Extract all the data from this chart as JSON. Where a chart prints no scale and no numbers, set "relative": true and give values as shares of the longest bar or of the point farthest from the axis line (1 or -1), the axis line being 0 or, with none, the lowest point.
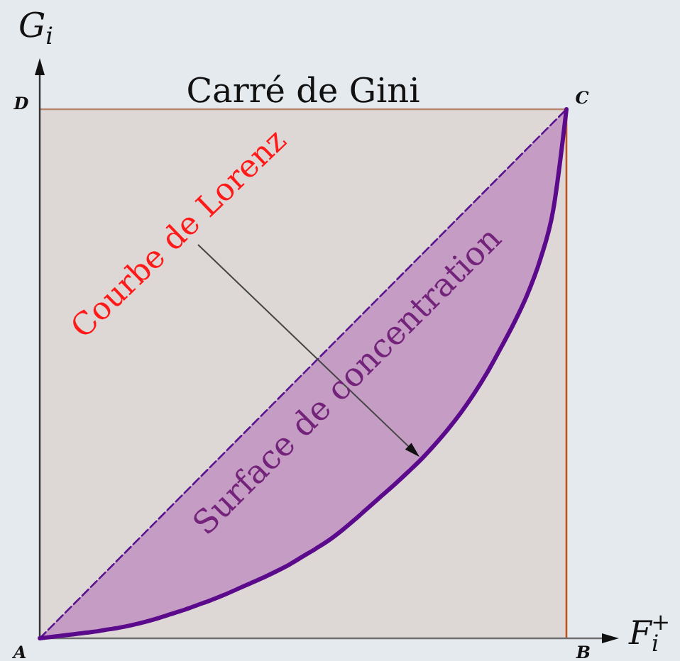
{
  "chart_data": {
    "type": "line",
    "title": "Carré de Gini",
    "xlabel": "F$_{i}$$^{+}$",
    "ylabel": "G$_{i}$",
    "relative": true,
    "categories": [
      null,
      null,
      null,
      null,
      null,
      null,
      null,
      null,
      null,
      null,
      null,
      null,
      null,
      null,
      null,
      null,
      null,
      null,
      null,
      null,
      null,
      null,
      null,
      null,
      null,
      null,
      null,
      null,
      null,
      null,
      null,
      null,
      null,
      null,
      null,
      null,
      null,
      null,
      null,
      null,
      null
    ],
    "series": [
      {
        "type": "line",
        "color": "#5a1490",
        "line_style": "dashed",
        "values": [
          0,
          0.025,
          0.05,
          0.075,
          0.1,
          0.125,
          0.15,
          0.175,
          0.2,
          0.225,
          0.25,
          0.275,
          0.3,
          0.325,
          0.35,
          0.375,
          0.4,
          0.425,
          0.45,
          0.475,
          0.5,
          0.525,
          0.55,
          0.575,
          0.6,
          0.625,
          0.65,
          0.675,
          0.7,
          0.725,
          0.75,
          0.775,
          0.8,
          0.825,
          0.85,
          0.875,
          0.9,
          0.925,
          0.95,
          0.975,
          1
        ]
      },
      {
        "type": "line",
        "color": "#5b0a8c",
        "line_style": "solid",
        "values": [
          0,
          0.003,
          0.006,
          0.009,
          0.012,
          0.016,
          0.02,
          0.025,
          0.031,
          0.038,
          0.046,
          0.054,
          0.063,
          0.072,
          0.082,
          0.093,
          0.104,
          0.115,
          0.127,
          0.14,
          0.155,
          0.17,
          0.186,
          0.205,
          0.226,
          0.248,
          0.27,
          0.292,
          0.315,
          0.339,
          0.366,
          0.395,
          0.427,
          0.463,
          0.503,
          0.548,
          0.595,
          0.648,
          0.715,
          0.81,
          1
        ],
        "lower": [
          0,
          0.003,
          0.006,
          0.009,
          0.012,
          0.016,
          0.02,
          0.025,
          0.031,
          0.038,
          0.046,
          0.054,
          0.063,
          0.072,
          0.082,
          0.093,
          0.104,
          0.115,
          0.127,
          0.14,
          0.155,
          0.17,
          0.186,
          0.205,
          0.226,
          0.248,
          0.27,
          0.292,
          0.315,
          0.339,
          0.366,
          0.395,
          0.427,
          0.463,
          0.503,
          0.548,
          0.595,
          0.648,
          0.715,
          0.81,
          1
        ],
        "upper": [
          0,
          0.025,
          0.05,
          0.075,
          0.1,
          0.125,
          0.15,
          0.175,
          0.2,
          0.225,
          0.25,
          0.275,
          0.3,
          0.325,
          0.35,
          0.375,
          0.4,
          0.425,
          0.45,
          0.475,
          0.5,
          0.525,
          0.55,
          0.575,
          0.6,
          0.625,
          0.65,
          0.675,
          0.7,
          0.725,
          0.75,
          0.775,
          0.8,
          0.825,
          0.85,
          0.875,
          0.9,
          0.925,
          0.95,
          0.975,
          1
        ]
      }
    ],
    "annotations": [
      "Courbe de Lorenz",
      "Surface de concentration",
      "A",
      "B",
      "C",
      "D"
    ]
  }
}
